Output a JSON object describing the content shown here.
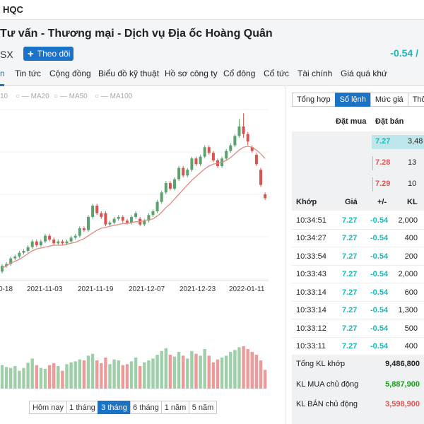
{
  "topbar": {
    "ticker": "HQC"
  },
  "header": {
    "company_name": "Tư vấn - Thương mại - Dịch vụ Địa ốc Hoàng Quân",
    "exchange": "SX",
    "follow_label": "Theo dõi",
    "price_change": "-0.54 /"
  },
  "tabs": [
    {
      "label": "n"
    },
    {
      "label": "Tin tức"
    },
    {
      "label": "Cộng đồng"
    },
    {
      "label": "Biểu đồ kỹ thuật"
    },
    {
      "label": "Hồ sơ công ty"
    },
    {
      "label": "Cổ đông"
    },
    {
      "label": "Cổ tức"
    },
    {
      "label": "Tài chính"
    },
    {
      "label": "Giá quá khứ"
    }
  ],
  "ma_legend": [
    {
      "label": "10"
    },
    {
      "label": "MA20"
    },
    {
      "label": "MA50"
    },
    {
      "label": "MA100"
    }
  ],
  "chart_data": {
    "type": "candlestick",
    "title": "",
    "x_tick_labels": [
      "0-18",
      "2021-11-03",
      "2021-11-19",
      "2021-12-07",
      "2021-12-23",
      "2022-01-11"
    ],
    "candles": [
      {
        "o": 3.9,
        "c": 4.2,
        "h": 4.3,
        "l": 3.8
      },
      {
        "o": 4.2,
        "c": 4.3,
        "h": 4.4,
        "l": 4.1
      },
      {
        "o": 4.3,
        "c": 4.6,
        "h": 4.7,
        "l": 4.2
      },
      {
        "o": 4.6,
        "c": 4.7,
        "h": 4.8,
        "l": 4.5
      },
      {
        "o": 4.7,
        "c": 4.9,
        "h": 5.0,
        "l": 4.6
      },
      {
        "o": 4.9,
        "c": 5.0,
        "h": 5.1,
        "l": 4.8
      },
      {
        "o": 5.0,
        "c": 5.2,
        "h": 5.3,
        "l": 4.9
      },
      {
        "o": 5.2,
        "c": 5.5,
        "h": 5.6,
        "l": 5.1
      },
      {
        "o": 5.5,
        "c": 5.3,
        "h": 5.6,
        "l": 5.2
      },
      {
        "o": 5.3,
        "c": 5.5,
        "h": 5.6,
        "l": 5.2
      },
      {
        "o": 5.5,
        "c": 5.8,
        "h": 5.9,
        "l": 5.4
      },
      {
        "o": 5.8,
        "c": 5.6,
        "h": 5.9,
        "l": 5.5
      },
      {
        "o": 5.6,
        "c": 5.4,
        "h": 5.7,
        "l": 5.3
      },
      {
        "o": 5.4,
        "c": 5.5,
        "h": 5.6,
        "l": 5.3
      },
      {
        "o": 5.5,
        "c": 5.4,
        "h": 5.6,
        "l": 5.3
      },
      {
        "o": 5.4,
        "c": 5.5,
        "h": 5.6,
        "l": 5.3
      },
      {
        "o": 5.5,
        "c": 5.7,
        "h": 5.8,
        "l": 5.4
      },
      {
        "o": 5.7,
        "c": 5.8,
        "h": 5.9,
        "l": 5.6
      },
      {
        "o": 5.8,
        "c": 6.2,
        "h": 6.3,
        "l": 5.7
      },
      {
        "o": 6.2,
        "c": 6.1,
        "h": 6.3,
        "l": 6.0
      },
      {
        "o": 6.1,
        "c": 6.8,
        "h": 6.9,
        "l": 6.0
      },
      {
        "o": 6.8,
        "c": 7.4,
        "h": 7.5,
        "l": 6.7
      },
      {
        "o": 7.4,
        "c": 7.0,
        "h": 7.5,
        "l": 6.9
      },
      {
        "o": 7.0,
        "c": 6.8,
        "h": 7.1,
        "l": 6.7
      },
      {
        "o": 7.0,
        "c": 6.4,
        "h": 7.1,
        "l": 6.3
      },
      {
        "o": 6.4,
        "c": 6.5,
        "h": 6.6,
        "l": 6.3
      },
      {
        "o": 6.5,
        "c": 6.7,
        "h": 6.8,
        "l": 6.4
      },
      {
        "o": 6.7,
        "c": 6.8,
        "h": 6.9,
        "l": 6.6
      },
      {
        "o": 6.8,
        "c": 6.6,
        "h": 6.9,
        "l": 6.5
      },
      {
        "o": 6.6,
        "c": 6.5,
        "h": 6.7,
        "l": 6.4
      },
      {
        "o": 6.5,
        "c": 6.8,
        "h": 6.9,
        "l": 6.4
      },
      {
        "o": 6.8,
        "c": 7.0,
        "h": 7.1,
        "l": 6.7
      },
      {
        "o": 6.7,
        "c": 6.4,
        "h": 6.8,
        "l": 6.3
      },
      {
        "o": 6.4,
        "c": 6.6,
        "h": 6.7,
        "l": 6.3
      },
      {
        "o": 6.6,
        "c": 6.9,
        "h": 7.0,
        "l": 6.5
      },
      {
        "o": 6.9,
        "c": 7.1,
        "h": 7.2,
        "l": 6.8
      },
      {
        "o": 7.1,
        "c": 7.6,
        "h": 7.7,
        "l": 7.0
      },
      {
        "o": 7.6,
        "c": 8.1,
        "h": 8.2,
        "l": 7.5
      },
      {
        "o": 8.1,
        "c": 8.6,
        "h": 8.7,
        "l": 8.0
      },
      {
        "o": 8.6,
        "c": 8.3,
        "h": 8.7,
        "l": 8.2
      },
      {
        "o": 8.3,
        "c": 8.8,
        "h": 8.9,
        "l": 8.2
      },
      {
        "o": 8.8,
        "c": 9.4,
        "h": 9.5,
        "l": 8.7
      },
      {
        "o": 9.4,
        "c": 9.0,
        "h": 9.5,
        "l": 8.9
      },
      {
        "o": 9.0,
        "c": 9.3,
        "h": 9.4,
        "l": 8.9
      },
      {
        "o": 9.3,
        "c": 9.9,
        "h": 10.0,
        "l": 9.2
      },
      {
        "o": 9.9,
        "c": 9.6,
        "h": 10.0,
        "l": 9.5
      },
      {
        "o": 9.6,
        "c": 10.0,
        "h": 10.1,
        "l": 9.5
      },
      {
        "o": 10.0,
        "c": 10.5,
        "h": 10.6,
        "l": 9.9
      },
      {
        "o": 10.5,
        "c": 10.2,
        "h": 10.6,
        "l": 10.1
      },
      {
        "o": 10.2,
        "c": 9.8,
        "h": 10.3,
        "l": 9.7
      },
      {
        "o": 9.8,
        "c": 9.5,
        "h": 9.9,
        "l": 9.4
      },
      {
        "o": 9.5,
        "c": 9.9,
        "h": 10.0,
        "l": 9.4
      },
      {
        "o": 9.9,
        "c": 10.3,
        "h": 10.4,
        "l": 9.8
      },
      {
        "o": 10.3,
        "c": 10.6,
        "h": 10.7,
        "l": 10.2
      },
      {
        "o": 10.6,
        "c": 11.1,
        "h": 11.2,
        "l": 10.5
      },
      {
        "o": 11.1,
        "c": 11.6,
        "h": 12.0,
        "l": 11.0
      },
      {
        "o": 11.6,
        "c": 11.2,
        "h": 12.3,
        "l": 11.0
      },
      {
        "o": 11.2,
        "c": 10.8,
        "h": 11.3,
        "l": 10.6
      },
      {
        "o": 10.5,
        "c": 10.3,
        "h": 10.6,
        "l": 10.2
      },
      {
        "o": 10.1,
        "c": 9.6,
        "h": 10.2,
        "l": 9.5
      },
      {
        "o": 9.3,
        "c": 8.5,
        "h": 9.4,
        "l": 8.4
      },
      {
        "o": 8.0,
        "c": 7.8,
        "h": 8.1,
        "l": 7.7
      }
    ],
    "ma": [
      4.1,
      4.2,
      4.35,
      4.45,
      4.55,
      4.7,
      4.85,
      5.0,
      5.1,
      5.15,
      5.2,
      5.25,
      5.3,
      5.3,
      5.3,
      5.35,
      5.4,
      5.45,
      5.55,
      5.65,
      5.8,
      5.95,
      6.1,
      6.2,
      6.25,
      6.3,
      6.35,
      6.4,
      6.45,
      6.45,
      6.5,
      6.55,
      6.55,
      6.6,
      6.65,
      6.7,
      6.85,
      7.05,
      7.3,
      7.5,
      7.75,
      8.0,
      8.25,
      8.5,
      8.75,
      8.95,
      9.15,
      9.35,
      9.5,
      9.6,
      9.65,
      9.7,
      9.8,
      9.95,
      10.15,
      10.35,
      10.5,
      10.55,
      10.5,
      10.35,
      10.15,
      9.9
    ],
    "volume": [
      50,
      46,
      44,
      48,
      38,
      44,
      55,
      64,
      50,
      44,
      42,
      50,
      54,
      48,
      38,
      52,
      56,
      58,
      62,
      60,
      70,
      74,
      60,
      54,
      66,
      52,
      62,
      60,
      50,
      52,
      58,
      66,
      48,
      56,
      60,
      64,
      72,
      80,
      86,
      72,
      68,
      78,
      70,
      64,
      80,
      74,
      70,
      84,
      70,
      56,
      62,
      66,
      70,
      78,
      82,
      88,
      90,
      84,
      78,
      72,
      60,
      40
    ],
    "ylim": [
      3.5,
      12.5
    ]
  },
  "range_buttons": [
    {
      "label": "Hôm nay"
    },
    {
      "label": "1 tháng"
    },
    {
      "label": "3 tháng"
    },
    {
      "label": "6 tháng"
    },
    {
      "label": "1 năm"
    },
    {
      "label": "5 năm"
    }
  ],
  "right_tabs": [
    {
      "label": "Tổng hợp"
    },
    {
      "label": "Sổ lệnh"
    },
    {
      "label": "Mức giá"
    },
    {
      "label": "Thố"
    }
  ],
  "order_book": {
    "head_buy": "Đặt mua",
    "head_sell": "Đặt bán",
    "rows": [
      {
        "price": "7.27",
        "volume": "3,48",
        "color": "#1ab8b8",
        "bar": 1.0
      },
      {
        "price": "7.28",
        "volume": "13",
        "color": "#e05555",
        "bar": 0
      },
      {
        "price": "7.29",
        "volume": "10",
        "color": "#e05555",
        "bar": 0
      }
    ]
  },
  "trades": {
    "headers": {
      "time": "Khớp",
      "price": "Giá",
      "change": "+/-",
      "volume": "KL"
    },
    "rows": [
      {
        "time": "10:34:51",
        "price": "7.27",
        "change": "-0.54",
        "volume": "2,000"
      },
      {
        "time": "10:34:27",
        "price": "7.27",
        "change": "-0.54",
        "volume": "400"
      },
      {
        "time": "10:33:54",
        "price": "7.27",
        "change": "-0.54",
        "volume": "200"
      },
      {
        "time": "10:33:43",
        "price": "7.27",
        "change": "-0.54",
        "volume": "2,000"
      },
      {
        "time": "10:33:14",
        "price": "7.27",
        "change": "-0.54",
        "volume": "600"
      },
      {
        "time": "10:33:14",
        "price": "7.27",
        "change": "-0.54",
        "volume": "1,300"
      },
      {
        "time": "10:33:12",
        "price": "7.27",
        "change": "-0.54",
        "volume": "500"
      },
      {
        "time": "10:33:11",
        "price": "7.27",
        "change": "-0.54",
        "volume": "400"
      }
    ]
  },
  "summary": [
    {
      "label": "Tổng KL khớp",
      "value": "9,486,800",
      "color": "#222222"
    },
    {
      "label": "KL MUA chủ động",
      "value": "5,887,900",
      "color": "#1a9c1a"
    },
    {
      "label": "KL BÁN chủ động",
      "value": "3,598,900",
      "color": "#e05555"
    }
  ],
  "colors": {
    "accent": "#1a73c7",
    "up": "#1ab8b8",
    "down": "#e05555",
    "candle_up": "#5aa26e",
    "candle_down": "#d9534f",
    "volume_up": "#9fcfa9",
    "volume_down": "#ef9a9a",
    "ma_line": "#e08a80"
  }
}
